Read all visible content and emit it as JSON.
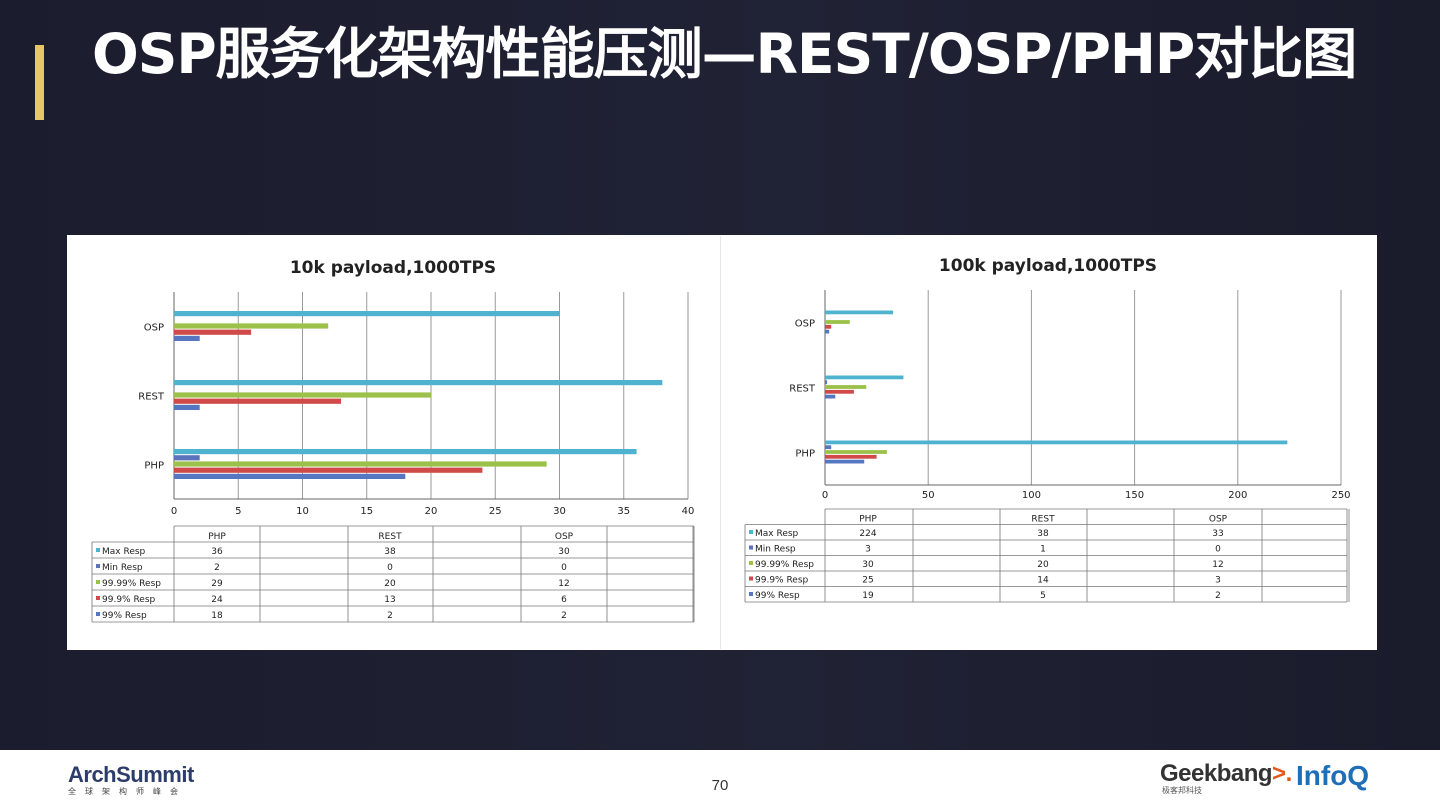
{
  "slide": {
    "title": "OSP服务化架构性能压测—REST/OSP/PHP对比图",
    "page_number": "70"
  },
  "colors": {
    "background": "#1e2032",
    "accent": "#e9c46a",
    "series": [
      "#4fb3d0",
      "#5b73b8",
      "#9cc14b",
      "#cf4a48",
      "#5576c0"
    ]
  },
  "logos": {
    "left_main": "ArchSummit",
    "left_sub": "全球架构师峰会",
    "right_geek": "Geekbang",
    "right_geek_mark": ">.",
    "right_geek_sub": "极客邦科技",
    "right_infoq": "InfoQ"
  },
  "chart_data": [
    {
      "type": "bar",
      "orientation": "horizontal",
      "title": "10k payload,1000TPS",
      "categories": [
        "PHP",
        "REST",
        "OSP"
      ],
      "series": [
        {
          "name": "Max Resp",
          "values": [
            36,
            38,
            30
          ]
        },
        {
          "name": "Min Resp",
          "values": [
            2,
            0,
            0
          ]
        },
        {
          "name": "99.99% Resp",
          "values": [
            29,
            20,
            12
          ]
        },
        {
          "name": "99.9% Resp",
          "values": [
            24,
            13,
            6
          ]
        },
        {
          "name": "99% Resp",
          "values": [
            18,
            2,
            2
          ]
        }
      ],
      "xlim": [
        0,
        40
      ],
      "ticks": [
        0,
        5,
        10,
        15,
        20,
        25,
        30,
        35,
        40
      ],
      "grid": true,
      "legend": "data-table-below"
    },
    {
      "type": "bar",
      "orientation": "horizontal",
      "title": "100k payload,1000TPS",
      "categories": [
        "PHP",
        "REST",
        "OSP"
      ],
      "series": [
        {
          "name": "Max Resp",
          "values": [
            224,
            38,
            33
          ]
        },
        {
          "name": "Min Resp",
          "values": [
            3,
            1,
            0
          ]
        },
        {
          "name": "99.99% Resp",
          "values": [
            30,
            20,
            12
          ]
        },
        {
          "name": "99.9% Resp",
          "values": [
            25,
            14,
            3
          ]
        },
        {
          "name": "99% Resp",
          "values": [
            19,
            5,
            2
          ]
        }
      ],
      "xlim": [
        0,
        250
      ],
      "ticks": [
        0,
        50,
        100,
        150,
        200,
        250
      ],
      "grid": true,
      "legend": "data-table-below"
    }
  ]
}
